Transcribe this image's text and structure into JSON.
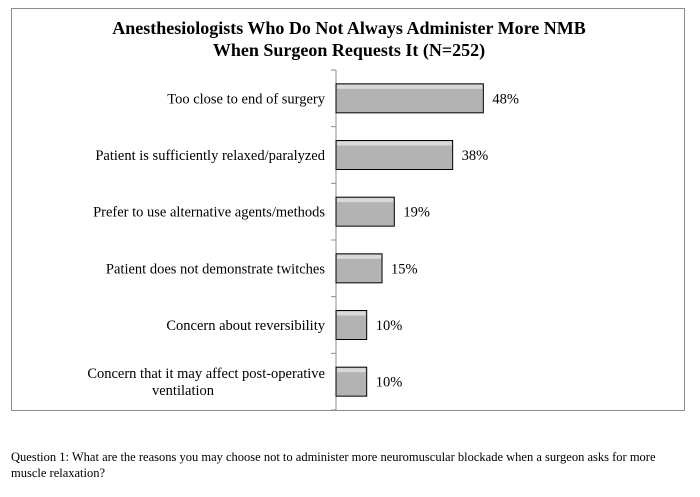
{
  "chart_data": {
    "type": "bar",
    "orientation": "horizontal",
    "title": [
      "Anesthesiologists Who Do Not Always Administer  More NMB",
      "When Surgeon Requests It (N=252)"
    ],
    "categories": [
      [
        "Too close to end of surgery"
      ],
      [
        "Patient is sufficiently relaxed/paralyzed"
      ],
      [
        "Prefer to use alternative agents/methods"
      ],
      [
        "Patient does not demonstrate twitches"
      ],
      [
        "Concern about reversibility"
      ],
      [
        "Concern that it may affect post-operative",
        "ventilation"
      ]
    ],
    "values": [
      48,
      38,
      19,
      15,
      10,
      10
    ],
    "value_labels": [
      "48%",
      "38%",
      "19%",
      "15%",
      "10%",
      "10%"
    ],
    "unit": "%",
    "xlim": [
      0,
      100
    ],
    "grid": false,
    "legend": "none",
    "bar_color": "#b3b3b3",
    "bar_border": "#000000"
  },
  "footnote": "Question 1: What are the reasons you may choose not to administer more neuromuscular blockade when a surgeon asks for more muscle relaxation?"
}
